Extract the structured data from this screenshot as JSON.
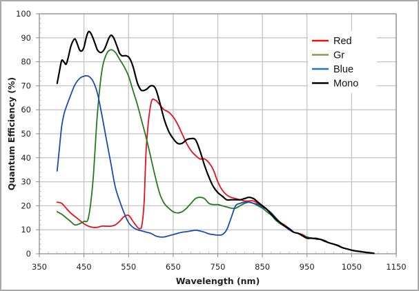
{
  "chart_data": {
    "type": "line",
    "title": "",
    "xlabel": "Wavelength (nm)",
    "ylabel": "Quantum Efficiency (%)",
    "xlim": [
      350,
      1150
    ],
    "ylim": [
      0,
      100
    ],
    "xticks": [
      350,
      450,
      550,
      650,
      750,
      850,
      950,
      1050,
      1150
    ],
    "yticks": [
      0,
      10,
      20,
      30,
      40,
      50,
      60,
      70,
      80,
      90,
      100
    ],
    "grid": true,
    "legend_position": "top-right",
    "series": [
      {
        "name": "Red",
        "color": "#e3101a",
        "x": [
          390,
          400,
          410,
          420,
          430,
          440,
          450,
          460,
          470,
          480,
          490,
          500,
          510,
          520,
          530,
          540,
          550,
          560,
          570,
          575,
          580,
          585,
          590,
          600,
          610,
          620,
          630,
          640,
          650,
          660,
          670,
          680,
          690,
          700,
          710,
          720,
          730,
          740,
          750,
          760,
          770,
          780,
          790,
          800,
          810,
          820,
          830,
          840,
          850,
          860,
          870,
          880,
          890,
          900,
          910,
          920,
          930,
          940,
          950,
          960,
          970,
          980,
          990,
          1000,
          1010,
          1020,
          1030,
          1040,
          1050,
          1060,
          1070,
          1080,
          1090,
          1100
        ],
        "y": [
          21.5,
          21,
          19,
          17,
          15.5,
          14,
          12.5,
          11.5,
          11,
          11,
          11.5,
          11.5,
          11.5,
          12,
          13.5,
          15.5,
          16,
          13.5,
          11,
          10.5,
          12,
          22,
          45,
          62.5,
          64,
          62,
          60,
          59,
          57,
          54,
          50,
          46,
          43,
          41,
          39.5,
          39.5,
          38,
          35,
          30,
          26.5,
          24.5,
          23.5,
          23,
          22.5,
          22,
          22,
          22,
          21,
          20,
          18.5,
          16.5,
          14.5,
          13,
          12,
          10.5,
          9,
          8.5,
          8,
          7,
          6.5,
          6.5,
          6,
          5.5,
          4.5,
          4,
          3.5,
          2.5,
          2,
          1.5,
          1.2,
          1,
          0.7,
          0.5,
          0.2
        ]
      },
      {
        "name": "Gr",
        "color": "#237a1e",
        "x": [
          390,
          400,
          410,
          420,
          430,
          440,
          450,
          460,
          470,
          480,
          490,
          500,
          510,
          520,
          530,
          540,
          550,
          560,
          570,
          580,
          590,
          600,
          610,
          620,
          630,
          640,
          650,
          660,
          670,
          680,
          690,
          700,
          710,
          720,
          730,
          740,
          750,
          760,
          770,
          780,
          790,
          800,
          810,
          820,
          830,
          840,
          850,
          860,
          870,
          880,
          890,
          900,
          910,
          920,
          930,
          940,
          950,
          960,
          970,
          980,
          990,
          1000,
          1010,
          1020,
          1030,
          1040,
          1050,
          1060,
          1070,
          1080,
          1090,
          1100
        ],
        "y": [
          17.5,
          16.5,
          15,
          13.5,
          12,
          12.5,
          13.5,
          15,
          30,
          58,
          76,
          83,
          85,
          84,
          81,
          78,
          74,
          68,
          62,
          55,
          48,
          40,
          32,
          25,
          21,
          19,
          17.5,
          17,
          17.5,
          19,
          21,
          23,
          23.5,
          23,
          21,
          20.5,
          20.5,
          20,
          19.5,
          19,
          19,
          20,
          21,
          21.5,
          21,
          20,
          19,
          17.5,
          16,
          14,
          12.5,
          11.5,
          10,
          9,
          8.5,
          7.5,
          7,
          6.5,
          6.5,
          6,
          5.5,
          4.5,
          4,
          3.5,
          2.5,
          2,
          1.5,
          1.2,
          1,
          0.7,
          0.5,
          0.2
        ]
      },
      {
        "name": "Blue",
        "color": "#1a49b0",
        "x": [
          390,
          395,
          400,
          405,
          410,
          420,
          430,
          440,
          450,
          460,
          470,
          480,
          490,
          500,
          510,
          520,
          530,
          540,
          550,
          560,
          570,
          580,
          590,
          600,
          610,
          620,
          630,
          640,
          650,
          660,
          670,
          680,
          690,
          700,
          710,
          720,
          730,
          740,
          750,
          760,
          770,
          780,
          790,
          800,
          810,
          820,
          830,
          840,
          850,
          860,
          870,
          880,
          890,
          900,
          910,
          920,
          930,
          940,
          950,
          960,
          970,
          980,
          990,
          1000,
          1010,
          1020,
          1030,
          1040,
          1050,
          1060,
          1070,
          1080,
          1090,
          1100
        ],
        "y": [
          34.5,
          44,
          53,
          58,
          61,
          66,
          70.5,
          73,
          74,
          74,
          72,
          67,
          58,
          48,
          38,
          28,
          22,
          17,
          13,
          11,
          10,
          9.5,
          9,
          8.5,
          7.5,
          7,
          7,
          7.5,
          8,
          8.5,
          9,
          9.2,
          9.5,
          9.8,
          9.5,
          9,
          8.3,
          8,
          7.8,
          8,
          10,
          15,
          20,
          21,
          21.5,
          21.5,
          21,
          20.5,
          19.5,
          18.5,
          17,
          15,
          13,
          11.5,
          10,
          9,
          8.5,
          7.5,
          6.5,
          6.5,
          6.3,
          6,
          5.5,
          4.5,
          4,
          3.5,
          2.5,
          2,
          1.5,
          1.2,
          1,
          0.7,
          0.5,
          0.2
        ]
      },
      {
        "name": "Mono",
        "color": "#000000",
        "x": [
          390,
          395,
          400,
          405,
          410,
          415,
          420,
          425,
          430,
          435,
          440,
          445,
          450,
          455,
          460,
          465,
          470,
          475,
          480,
          485,
          490,
          495,
          500,
          505,
          510,
          515,
          520,
          525,
          530,
          535,
          540,
          545,
          550,
          555,
          560,
          565,
          570,
          575,
          580,
          590,
          600,
          610,
          620,
          630,
          640,
          650,
          660,
          670,
          680,
          690,
          700,
          710,
          720,
          730,
          740,
          750,
          760,
          770,
          780,
          790,
          800,
          810,
          820,
          830,
          840,
          850,
          860,
          870,
          880,
          890,
          900,
          910,
          920,
          930,
          940,
          950,
          960,
          970,
          980,
          990,
          1000,
          1010,
          1020,
          1030,
          1040,
          1050,
          1060,
          1070,
          1080,
          1090,
          1100
        ],
        "y": [
          71,
          76,
          80.5,
          80,
          79,
          82,
          86,
          88.5,
          89.5,
          87.5,
          85,
          84.5,
          86,
          90,
          92.5,
          92,
          90,
          87.5,
          85,
          84,
          84,
          85,
          87,
          89.5,
          91,
          90.5,
          88.5,
          86,
          83.5,
          82.5,
          82.5,
          82.5,
          82,
          80.5,
          78,
          74.5,
          71,
          69,
          68,
          68.5,
          70,
          69,
          63,
          56,
          51,
          48,
          46,
          46,
          47.5,
          48,
          47.5,
          43,
          37,
          32,
          28,
          25.5,
          24,
          22.5,
          22.5,
          22.5,
          22.5,
          23,
          23.5,
          23,
          21.5,
          20,
          18.5,
          16.5,
          14.5,
          13,
          11.5,
          10.5,
          9,
          8.5,
          7.5,
          6.5,
          6.5,
          6.2,
          6,
          5.2,
          4.5,
          4,
          3.3,
          2.5,
          2,
          1.5,
          1.1,
          0.9,
          0.6,
          0.4,
          0.2
        ]
      }
    ]
  }
}
